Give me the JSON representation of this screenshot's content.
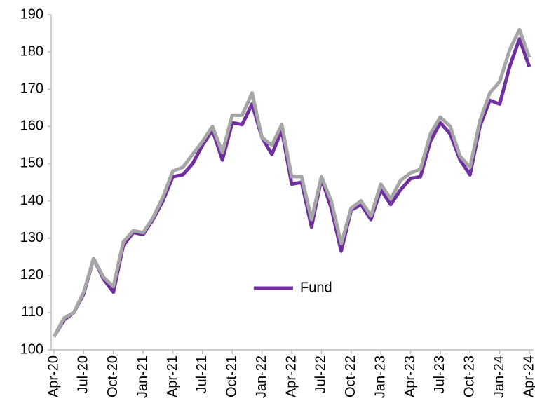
{
  "chart_data": {
    "type": "line",
    "categories": [
      "Apr-20",
      null,
      null,
      "Jul-20",
      null,
      null,
      "Oct-20",
      null,
      null,
      "Jan-21",
      null,
      null,
      "Apr-21",
      null,
      null,
      "Jul-21",
      null,
      null,
      "Oct-21",
      null,
      null,
      "Jan-22",
      null,
      null,
      "Apr-22",
      null,
      null,
      "Jul-22",
      null,
      null,
      "Oct-22",
      null,
      null,
      "Jan-23",
      null,
      null,
      "Apr-23",
      null,
      null,
      "Jul-23",
      null,
      null,
      "Oct-23",
      null,
      null,
      "Jan-24",
      null,
      null,
      "Apr-24"
    ],
    "series": [
      {
        "name": "Fund",
        "color": "#7030a0",
        "values": [
          103.5,
          108,
          110,
          115,
          124.5,
          119,
          115.5,
          128,
          131.5,
          131,
          135,
          140,
          146.5,
          147,
          150,
          155,
          159,
          151,
          161,
          160.5,
          166,
          157,
          152.5,
          159,
          144.5,
          145,
          133,
          146,
          138,
          126.5,
          137.5,
          139,
          135,
          143,
          139,
          143,
          146,
          146.5,
          156,
          161,
          158,
          151,
          147,
          160,
          167,
          166,
          176,
          183.5,
          176
        ]
      },
      {
        "color": "#a6a6a6",
        "values": [
          103.5,
          108.5,
          110,
          115.5,
          124.5,
          119.5,
          117,
          129,
          132,
          131.5,
          135.5,
          141,
          148,
          149,
          152.5,
          156,
          160,
          153,
          163,
          163,
          169,
          157,
          155,
          160.5,
          146.5,
          146.5,
          135,
          146.5,
          140,
          128.5,
          138,
          140,
          136,
          144.5,
          140.5,
          145.5,
          147.5,
          148.5,
          158,
          162.5,
          160,
          152,
          149,
          161.5,
          169,
          172,
          180.5,
          186,
          178.5
        ]
      }
    ],
    "ylim": [
      100,
      190
    ],
    "yticks": [
      100,
      110,
      120,
      130,
      140,
      150,
      160,
      170,
      180,
      190
    ],
    "grid": false,
    "legend": "center"
  }
}
